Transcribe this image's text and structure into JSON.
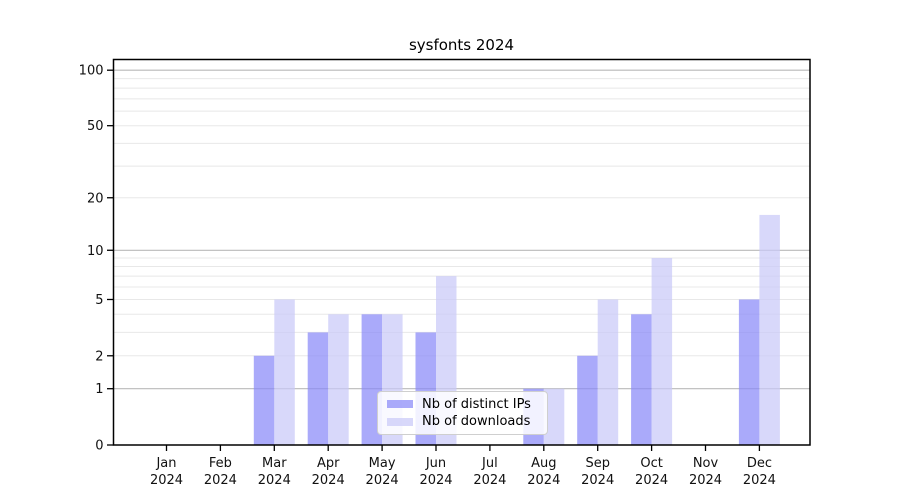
{
  "chart_data": {
    "type": "bar",
    "title": "sysfonts 2024",
    "categories": [
      "Jan",
      "Feb",
      "Mar",
      "Apr",
      "May",
      "Jun",
      "Jul",
      "Aug",
      "Sep",
      "Oct",
      "Nov",
      "Dec"
    ],
    "category_year": "2024",
    "series": [
      {
        "name": "Nb of distinct IPs",
        "color": "#8989f8",
        "values": [
          0,
          0,
          2,
          3,
          4,
          3,
          0,
          1,
          2,
          4,
          0,
          5
        ]
      },
      {
        "name": "Nb of downloads",
        "color": "#c9c9f8",
        "values": [
          0,
          0,
          5,
          4,
          4,
          7,
          0,
          1,
          5,
          9,
          0,
          16
        ]
      }
    ],
    "bar_alpha": 0.72,
    "yscale": "log1p",
    "yticks": [
      0,
      1,
      2,
      5,
      10,
      20,
      50,
      100
    ],
    "ylim": [
      0,
      115
    ],
    "xlabel": "",
    "ylabel": "",
    "grid": true,
    "legend_position": "lower center",
    "colors": {
      "major_gridline": "#b9b9b9",
      "minor_gridline": "#e8e8e8",
      "axis": "#000000"
    }
  }
}
